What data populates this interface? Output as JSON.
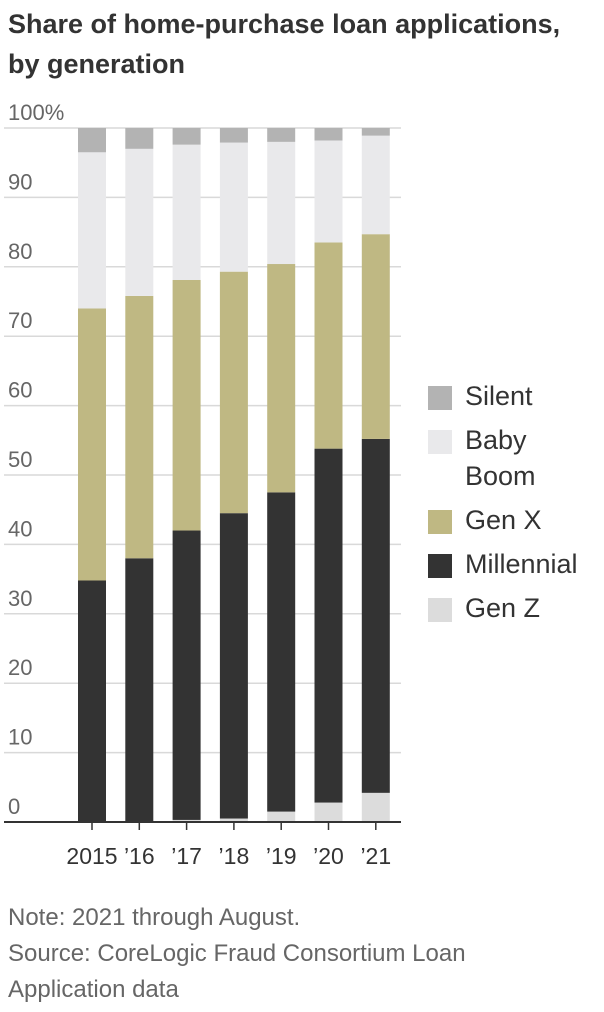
{
  "title": {
    "line1": "Share of home-purchase loan applications,",
    "line2": "by generation"
  },
  "colors": {
    "Silent": "#b3b3b3",
    "Baby Boom": "#e9e9eb",
    "Gen X": "#bfb883",
    "Millennial": "#333333",
    "Gen Z": "#dcdcdc",
    "grid": "#d9d9d9",
    "axis": "#333333"
  },
  "legend": [
    {
      "name": "Silent",
      "label_lines": [
        "Silent"
      ]
    },
    {
      "name": "Baby Boom",
      "label_lines": [
        "Baby",
        "Boom"
      ]
    },
    {
      "name": "Gen X",
      "label_lines": [
        "Gen X"
      ]
    },
    {
      "name": "Millennial",
      "label_lines": [
        "Millennial"
      ]
    },
    {
      "name": "Gen Z",
      "label_lines": [
        "Gen Z"
      ]
    }
  ],
  "notes": {
    "note": "Note: 2021 through August.",
    "source_line1": "Source: CoreLogic Fraud Consortium Loan",
    "source_line2": "Application data"
  },
  "chart_data": {
    "type": "bar",
    "stacked": true,
    "title": "Share of home-purchase loan applications, by generation",
    "categories": [
      "2015",
      "’16",
      "’17",
      "’18",
      "’19",
      "’20",
      "’21"
    ],
    "series": [
      {
        "name": "Gen Z",
        "values": [
          0.0,
          0.0,
          0.3,
          0.5,
          1.5,
          2.8,
          4.2
        ]
      },
      {
        "name": "Millennial",
        "values": [
          34.8,
          38.0,
          41.7,
          44.0,
          46.0,
          51.0,
          51.0
        ]
      },
      {
        "name": "Gen X",
        "values": [
          39.2,
          37.8,
          36.1,
          34.8,
          32.9,
          29.7,
          29.5
        ]
      },
      {
        "name": "Baby Boom",
        "values": [
          22.5,
          21.2,
          19.5,
          18.6,
          17.6,
          14.7,
          14.2
        ]
      },
      {
        "name": "Silent",
        "values": [
          3.5,
          3.0,
          2.4,
          2.1,
          2.0,
          1.8,
          1.1
        ]
      }
    ],
    "y_ticks": [
      "0",
      "10",
      "20",
      "30",
      "40",
      "50",
      "60",
      "70",
      "80",
      "90",
      "100%"
    ],
    "ylim": [
      0,
      100
    ],
    "grid": true,
    "legend_position": "right"
  }
}
